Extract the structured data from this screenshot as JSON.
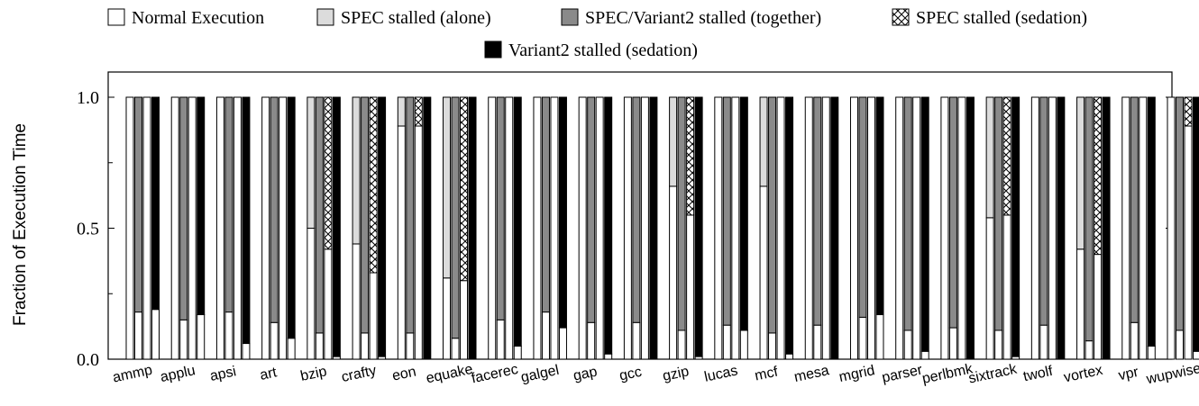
{
  "chart_data": {
    "type": "bar",
    "subtype": "grouped-stacked",
    "title": "",
    "xlabel": "",
    "ylabel": "Fraction of Execution Time",
    "ylim": [
      0,
      1.0
    ],
    "yticks": [
      "0.0",
      "0.5",
      "1.0"
    ],
    "ytick_values": [
      0,
      0.5,
      1.0
    ],
    "legend_placement": "top-center",
    "legend": [
      {
        "name": "Normal Execution",
        "pattern": "white"
      },
      {
        "name": "SPEC stalled (alone)",
        "pattern": "light-gray"
      },
      {
        "name": "SPEC/Variant2 stalled (together)",
        "pattern": "dark-gray"
      },
      {
        "name": "SPEC stalled (sedation)",
        "pattern": "crosshatch"
      },
      {
        "name": "Variant2 stalled (sedation)",
        "pattern": "black"
      }
    ],
    "colors": {
      "white": "#ffffff",
      "light-gray": "#dcdcdc",
      "dark-gray": "#8a8a8a",
      "black": "#000000"
    },
    "categories": [
      "ammp",
      "applu",
      "apsi",
      "art",
      "bzip",
      "crafty",
      "eon",
      "equake",
      "facerec",
      "galgel",
      "gap",
      "gcc",
      "gzip",
      "lucas",
      "mcf",
      "mesa",
      "mgrid",
      "parser",
      "perlbmk",
      "sixtrack",
      "twolf",
      "vortex",
      "vpr",
      "wupwise"
    ],
    "bars": [
      {
        "name": "SPEC alone",
        "segments": [
          "white",
          "light-gray"
        ]
      },
      {
        "name": "SPEC together",
        "segments": [
          "white",
          "dark-gray"
        ]
      },
      {
        "name": "SPEC sedation",
        "segments": [
          "white",
          "crosshatch"
        ]
      },
      {
        "name": "Variant2 sedation",
        "segments": [
          "white",
          "black"
        ]
      }
    ],
    "values": [
      [
        1.0,
        0.18,
        1.0,
        0.19
      ],
      [
        1.0,
        0.15,
        1.0,
        0.17
      ],
      [
        1.0,
        0.18,
        1.0,
        0.06
      ],
      [
        1.0,
        0.14,
        1.0,
        0.08
      ],
      [
        0.5,
        0.1,
        0.42,
        0.01
      ],
      [
        0.44,
        0.1,
        0.33,
        0.01
      ],
      [
        0.89,
        0.1,
        0.89,
        0.0
      ],
      [
        0.31,
        0.08,
        0.3,
        0.0
      ],
      [
        1.0,
        0.15,
        1.0,
        0.05
      ],
      [
        1.0,
        0.18,
        1.0,
        0.12
      ],
      [
        1.0,
        0.14,
        1.0,
        0.02
      ],
      [
        1.0,
        0.14,
        1.0,
        0.0
      ],
      [
        0.66,
        0.11,
        0.55,
        0.01
      ],
      [
        1.0,
        0.13,
        1.0,
        0.11
      ],
      [
        0.66,
        0.1,
        1.0,
        0.02
      ],
      [
        1.0,
        0.13,
        1.0,
        0.0
      ],
      [
        1.0,
        0.16,
        1.0,
        0.17
      ],
      [
        1.0,
        0.11,
        1.0,
        0.03
      ],
      [
        1.0,
        0.12,
        1.0,
        0.0
      ],
      [
        0.54,
        0.11,
        0.55,
        0.01
      ],
      [
        1.0,
        0.13,
        1.0,
        0.0
      ],
      [
        0.42,
        0.07,
        0.4,
        0.0
      ],
      [
        1.0,
        0.14,
        1.0,
        0.05
      ],
      [
        1.0,
        0.11,
        0.89,
        0.03
      ]
    ]
  }
}
